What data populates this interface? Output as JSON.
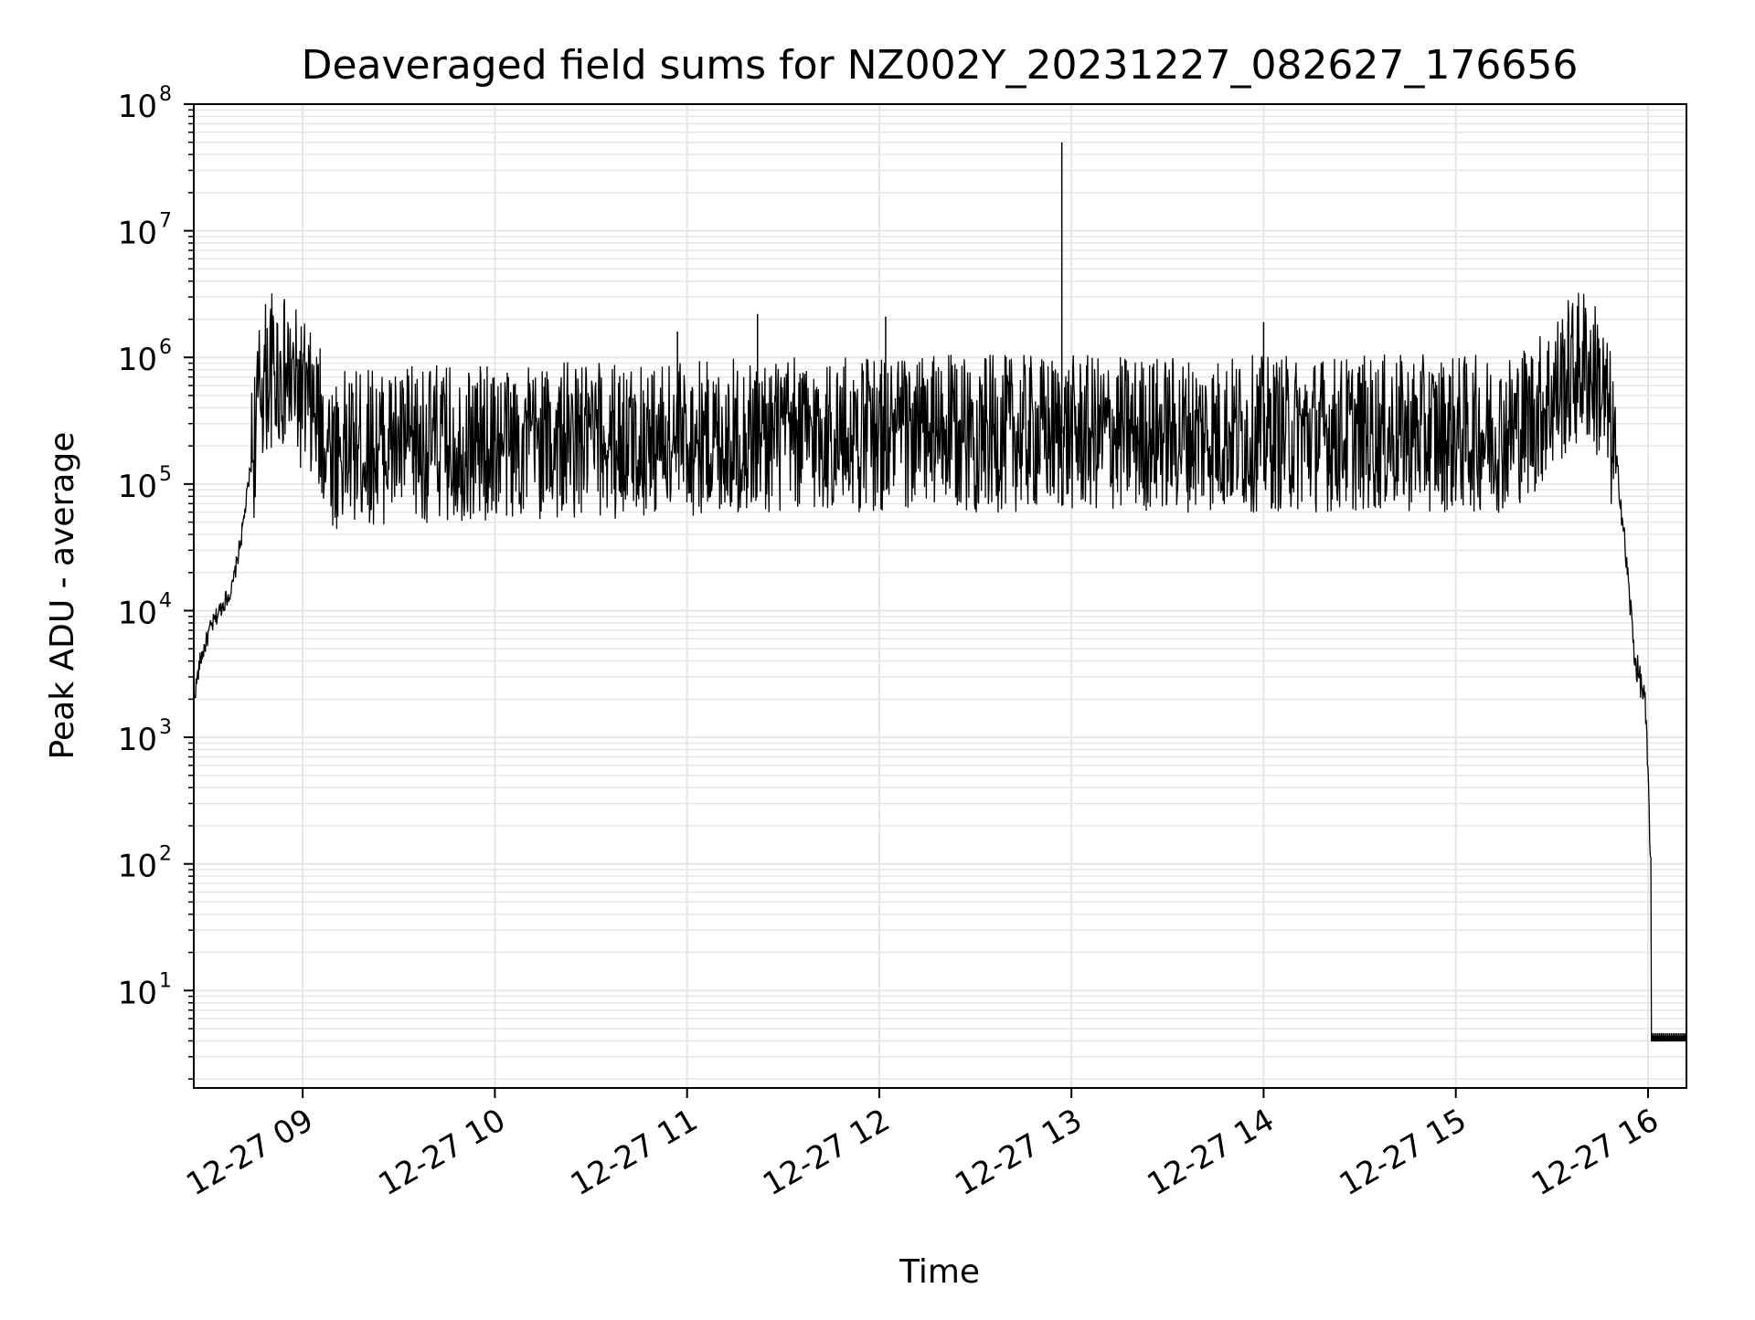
{
  "chart_data": {
    "type": "line",
    "title": "Deaveraged field sums for NZ002Y_20231227_082627_176656",
    "xlabel": "Time",
    "ylabel": "Peak ADU - average",
    "x_axis_type": "time",
    "y_scale": "log",
    "xlim": [
      "2023-12-27 08:26",
      "2023-12-27 16:12"
    ],
    "ylim": [
      1.7,
      100000000
    ],
    "x_ticks": [
      {
        "value": "2023-12-27 09:00",
        "label": "12-27 09"
      },
      {
        "value": "2023-12-27 10:00",
        "label": "12-27 10"
      },
      {
        "value": "2023-12-27 11:00",
        "label": "12-27 11"
      },
      {
        "value": "2023-12-27 12:00",
        "label": "12-27 12"
      },
      {
        "value": "2023-12-27 13:00",
        "label": "12-27 13"
      },
      {
        "value": "2023-12-27 14:00",
        "label": "12-27 14"
      },
      {
        "value": "2023-12-27 15:00",
        "label": "12-27 15"
      },
      {
        "value": "2023-12-27 16:00",
        "label": "12-27 16"
      }
    ],
    "y_ticks": [
      {
        "value": 10,
        "base": "10",
        "exp": "1"
      },
      {
        "value": 100,
        "base": "10",
        "exp": "2"
      },
      {
        "value": 1000,
        "base": "10",
        "exp": "3"
      },
      {
        "value": 10000,
        "base": "10",
        "exp": "4"
      },
      {
        "value": 100000,
        "base": "10",
        "exp": "5"
      },
      {
        "value": 1000000,
        "base": "10",
        "exp": "6"
      },
      {
        "value": 10000000,
        "base": "10",
        "exp": "7"
      },
      {
        "value": 100000000,
        "base": "10",
        "exp": "8"
      }
    ],
    "grid": true,
    "line_color": "#000000",
    "grid_color": "#e6e6e6",
    "series": [
      {
        "envelope": [
          [
            "2023-12-27 08:26",
            2000
          ],
          [
            "2023-12-27 08:28",
            4000
          ],
          [
            "2023-12-27 08:31",
            7000
          ],
          [
            "2023-12-27 08:34",
            10000
          ],
          [
            "2023-12-27 08:38",
            15000
          ],
          [
            "2023-12-27 08:41",
            40000
          ],
          [
            "2023-12-27 08:44",
            150000
          ],
          [
            "2023-12-27 08:47",
            600000
          ],
          [
            "2023-12-27 08:50",
            800000
          ],
          [
            "2023-12-27 08:55",
            700000
          ],
          [
            "2023-12-27 09:00",
            500000
          ],
          [
            "2023-12-27 09:05",
            300000
          ],
          [
            "2023-12-27 09:10",
            180000
          ],
          [
            "2023-12-27 09:20",
            200000
          ],
          [
            "2023-12-27 12:00",
            250000
          ],
          [
            "2023-12-27 15:15",
            250000
          ],
          [
            "2023-12-27 15:25",
            350000
          ],
          [
            "2023-12-27 15:35",
            700000
          ],
          [
            "2023-12-27 15:40",
            900000
          ],
          [
            "2023-12-27 15:45",
            600000
          ],
          [
            "2023-12-27 15:48",
            300000
          ],
          [
            "2023-12-27 15:51",
            100000
          ],
          [
            "2023-12-27 15:54",
            15000
          ],
          [
            "2023-12-27 15:56",
            4000
          ],
          [
            "2023-12-27 15:59",
            2000
          ],
          [
            "2023-12-27 16:00",
            500
          ],
          [
            "2023-12-27 16:01",
            80
          ],
          [
            "2023-12-27 16:01",
            4
          ],
          [
            "2023-12-27 16:12",
            4
          ]
        ],
        "spikes": [
          [
            "2023-12-27 12:57",
            50000000
          ],
          [
            "2023-12-27 11:22",
            2200000
          ],
          [
            "2023-12-27 12:02",
            2100000
          ],
          [
            "2023-12-27 14:00",
            1900000
          ],
          [
            "2023-12-27 15:35",
            1900000
          ],
          [
            "2023-12-27 10:57",
            1600000
          ]
        ]
      }
    ]
  }
}
